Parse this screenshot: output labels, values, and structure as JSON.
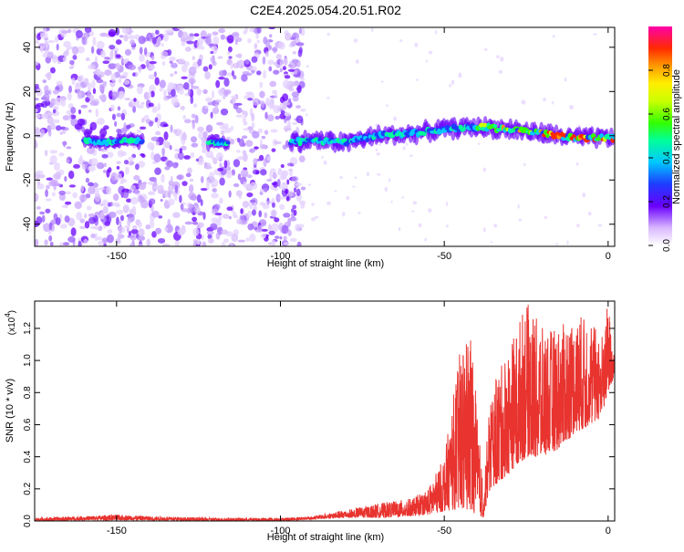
{
  "title": "C2E4.2025.054.20.51.R02",
  "chart_data": [
    {
      "type": "heatmap",
      "xlabel": "Height of straight line (km)",
      "ylabel": "Frequency (Hz)",
      "xlim": [
        -175,
        2
      ],
      "ylim": [
        -50,
        49
      ],
      "xticks": [
        -150,
        -100,
        -50,
        0
      ],
      "yticks": [
        -40,
        -20,
        0,
        20,
        40
      ],
      "colorbar": {
        "label": "Normalized spectral amplitude",
        "range": [
          0.0,
          1.0
        ],
        "ticks": [
          0.0,
          0.2,
          0.4,
          0.6,
          0.8
        ]
      },
      "ridge": {
        "x": [
          -160,
          -150,
          -145,
          -140,
          -120,
          -118,
          -97,
          -90,
          -80,
          -70,
          -60,
          -50,
          -40,
          -30,
          -20,
          -10,
          0
        ],
        "freq_hz": [
          -2,
          -3,
          -2,
          -3,
          -3,
          -3,
          -3,
          -2,
          -3,
          0,
          1,
          3,
          4,
          3,
          1,
          -1,
          -1
        ],
        "segments": [
          [
            -160,
            -142
          ],
          [
            -122,
            -116
          ],
          [
            -97,
            2
          ]
        ]
      }
    },
    {
      "type": "line",
      "xlabel": "Height of straight line (km)",
      "ylabel": "SNR (10 * v/v)",
      "scale_label": "(x10",
      "scale_exp": "4",
      "xlim": [
        -175,
        2
      ],
      "ylim": [
        0,
        1.37
      ],
      "xticks": [
        -150,
        -100,
        -50,
        0
      ],
      "yticks": [
        0.0,
        0.2,
        0.4,
        0.6,
        0.8,
        1.0,
        1.2
      ],
      "series_color": "#e8332f",
      "envelope": {
        "x": [
          -175,
          -160,
          -150,
          -140,
          -120,
          -100,
          -90,
          -80,
          -70,
          -60,
          -55,
          -50,
          -45,
          -42,
          -40,
          -38,
          -36,
          -30,
          -25,
          -20,
          -15,
          -10,
          -5,
          -2,
          0,
          2
        ],
        "low": [
          0.0,
          0.005,
          0.005,
          0.005,
          0.0,
          0.0,
          0.01,
          0.02,
          0.02,
          0.03,
          0.04,
          0.06,
          0.08,
          0.06,
          0.04,
          0.02,
          0.2,
          0.3,
          0.4,
          0.4,
          0.45,
          0.55,
          0.6,
          0.65,
          0.8,
          0.9
        ],
        "high": [
          0.02,
          0.03,
          0.04,
          0.03,
          0.02,
          0.02,
          0.03,
          0.07,
          0.11,
          0.14,
          0.2,
          0.4,
          1.1,
          1.22,
          0.7,
          0.2,
          0.8,
          1.1,
          1.37,
          1.2,
          1.2,
          1.3,
          1.25,
          1.15,
          1.37,
          1.0
        ]
      }
    }
  ]
}
